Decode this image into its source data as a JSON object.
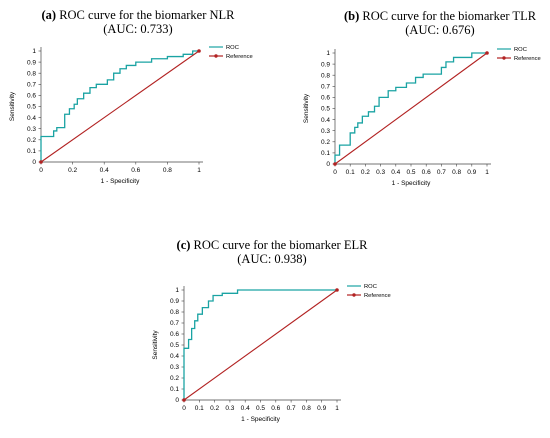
{
  "chart_data": [
    {
      "type": "line",
      "panel_label": "(a)",
      "title": "ROC curve for the biomarker NLR",
      "subtitle": "(AUC: 0.733)",
      "xlabel": "1 - Specificity",
      "ylabel": "Sensitivity",
      "xlim": [
        0,
        1
      ],
      "ylim": [
        0,
        1
      ],
      "x_ticks": [
        "0",
        "0.2",
        "0.4",
        "0.6",
        "0.8",
        "1"
      ],
      "y_ticks": [
        "0",
        "0.1",
        "0.2",
        "0.3",
        "0.4",
        "0.5",
        "0.6",
        "0.7",
        "0.8",
        "0.9",
        "1"
      ],
      "legend_position": "top-right",
      "grid": false,
      "series": [
        {
          "name": "ROC",
          "color": "#1aa3a3",
          "points": [
            [
              0,
              0
            ],
            [
              0,
              0.23
            ],
            [
              0.08,
              0.23
            ],
            [
              0.08,
              0.28
            ],
            [
              0.1,
              0.28
            ],
            [
              0.1,
              0.31
            ],
            [
              0.15,
              0.31
            ],
            [
              0.15,
              0.43
            ],
            [
              0.18,
              0.43
            ],
            [
              0.18,
              0.48
            ],
            [
              0.21,
              0.48
            ],
            [
              0.21,
              0.52
            ],
            [
              0.23,
              0.52
            ],
            [
              0.23,
              0.57
            ],
            [
              0.27,
              0.57
            ],
            [
              0.27,
              0.62
            ],
            [
              0.31,
              0.62
            ],
            [
              0.31,
              0.67
            ],
            [
              0.35,
              0.67
            ],
            [
              0.35,
              0.7
            ],
            [
              0.42,
              0.7
            ],
            [
              0.42,
              0.74
            ],
            [
              0.46,
              0.74
            ],
            [
              0.46,
              0.8
            ],
            [
              0.5,
              0.8
            ],
            [
              0.5,
              0.84
            ],
            [
              0.54,
              0.84
            ],
            [
              0.54,
              0.87
            ],
            [
              0.6,
              0.87
            ],
            [
              0.6,
              0.9
            ],
            [
              0.7,
              0.9
            ],
            [
              0.7,
              0.93
            ],
            [
              0.8,
              0.93
            ],
            [
              0.8,
              0.95
            ],
            [
              0.9,
              0.95
            ],
            [
              0.9,
              0.97
            ],
            [
              0.96,
              0.97
            ],
            [
              0.96,
              1
            ],
            [
              1,
              1
            ]
          ]
        },
        {
          "name": "Reference",
          "color": "#b22222",
          "points": [
            [
              0,
              0
            ],
            [
              1,
              1
            ]
          ]
        }
      ]
    },
    {
      "type": "line",
      "panel_label": "(b)",
      "title": "ROC curve for the biomarker TLR",
      "subtitle": "(AUC: 0.676)",
      "xlabel": "1 - Specificity",
      "ylabel": "Sensitivity",
      "xlim": [
        0,
        1
      ],
      "ylim": [
        0,
        1
      ],
      "x_ticks": [
        "0",
        "0.1",
        "0.2",
        "0.3",
        "0.4",
        "0.5",
        "0.6",
        "0.7",
        "0.8",
        "0.9",
        "1"
      ],
      "y_ticks": [
        "0",
        "0.1",
        "0.2",
        "0.3",
        "0.4",
        "0.5",
        "0.6",
        "0.7",
        "0.8",
        "0.9",
        "1"
      ],
      "legend_position": "top-right",
      "grid": false,
      "series": [
        {
          "name": "ROC",
          "color": "#1aa3a3",
          "points": [
            [
              0,
              0
            ],
            [
              0,
              0.08
            ],
            [
              0.03,
              0.08
            ],
            [
              0.03,
              0.17
            ],
            [
              0.1,
              0.17
            ],
            [
              0.1,
              0.28
            ],
            [
              0.13,
              0.28
            ],
            [
              0.13,
              0.33
            ],
            [
              0.15,
              0.33
            ],
            [
              0.15,
              0.37
            ],
            [
              0.18,
              0.37
            ],
            [
              0.18,
              0.43
            ],
            [
              0.22,
              0.43
            ],
            [
              0.22,
              0.47
            ],
            [
              0.26,
              0.47
            ],
            [
              0.26,
              0.52
            ],
            [
              0.29,
              0.52
            ],
            [
              0.29,
              0.6
            ],
            [
              0.35,
              0.6
            ],
            [
              0.35,
              0.66
            ],
            [
              0.4,
              0.66
            ],
            [
              0.4,
              0.69
            ],
            [
              0.47,
              0.69
            ],
            [
              0.47,
              0.73
            ],
            [
              0.53,
              0.73
            ],
            [
              0.53,
              0.78
            ],
            [
              0.58,
              0.78
            ],
            [
              0.58,
              0.81
            ],
            [
              0.7,
              0.81
            ],
            [
              0.7,
              0.87
            ],
            [
              0.73,
              0.87
            ],
            [
              0.73,
              0.92
            ],
            [
              0.78,
              0.92
            ],
            [
              0.78,
              0.96
            ],
            [
              0.9,
              0.96
            ],
            [
              0.9,
              1
            ],
            [
              1,
              1
            ]
          ]
        },
        {
          "name": "Reference",
          "color": "#b22222",
          "points": [
            [
              0,
              0
            ],
            [
              1,
              1
            ]
          ]
        }
      ]
    },
    {
      "type": "line",
      "panel_label": "(c)",
      "title": "ROC curve for the biomarker ELR",
      "subtitle": "(AUC: 0.938)",
      "xlabel": "1 - Specificity",
      "ylabel": "Sensitivity",
      "xlim": [
        0,
        1
      ],
      "ylim": [
        0,
        1
      ],
      "x_ticks": [
        "0",
        "0.1",
        "0.2",
        "0.3",
        "0.4",
        "0.5",
        "0.6",
        "0.7",
        "0.8",
        "0.9",
        "1"
      ],
      "y_ticks": [
        "0",
        "0.1",
        "0.2",
        "0.3",
        "0.4",
        "0.5",
        "0.6",
        "0.7",
        "0.8",
        "0.9",
        "1"
      ],
      "legend_position": "top-right",
      "grid": false,
      "series": [
        {
          "name": "ROC",
          "color": "#1aa3a3",
          "points": [
            [
              0,
              0
            ],
            [
              0,
              0.47
            ],
            [
              0.03,
              0.47
            ],
            [
              0.03,
              0.55
            ],
            [
              0.05,
              0.55
            ],
            [
              0.05,
              0.65
            ],
            [
              0.07,
              0.65
            ],
            [
              0.07,
              0.72
            ],
            [
              0.09,
              0.72
            ],
            [
              0.09,
              0.78
            ],
            [
              0.12,
              0.78
            ],
            [
              0.12,
              0.84
            ],
            [
              0.16,
              0.84
            ],
            [
              0.16,
              0.9
            ],
            [
              0.19,
              0.9
            ],
            [
              0.19,
              0.95
            ],
            [
              0.25,
              0.95
            ],
            [
              0.25,
              0.97
            ],
            [
              0.35,
              0.97
            ],
            [
              0.35,
              1
            ],
            [
              1,
              1
            ]
          ]
        },
        {
          "name": "Reference",
          "color": "#b22222",
          "points": [
            [
              0,
              0
            ],
            [
              1,
              1
            ]
          ]
        }
      ]
    }
  ]
}
